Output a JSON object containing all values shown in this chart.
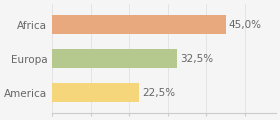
{
  "categories": [
    "Africa",
    "Europa",
    "America"
  ],
  "values": [
    45.0,
    32.5,
    22.5
  ],
  "bar_colors": [
    "#e8a97e",
    "#b5c98e",
    "#f5d67a"
  ],
  "label_texts": [
    "45,0%",
    "32,5%",
    "22,5%"
  ],
  "background_color": "#f5f5f5",
  "bar_height": 0.55,
  "xlim": [
    0,
    58
  ],
  "label_fontsize": 7.5,
  "tick_fontsize": 7.5
}
